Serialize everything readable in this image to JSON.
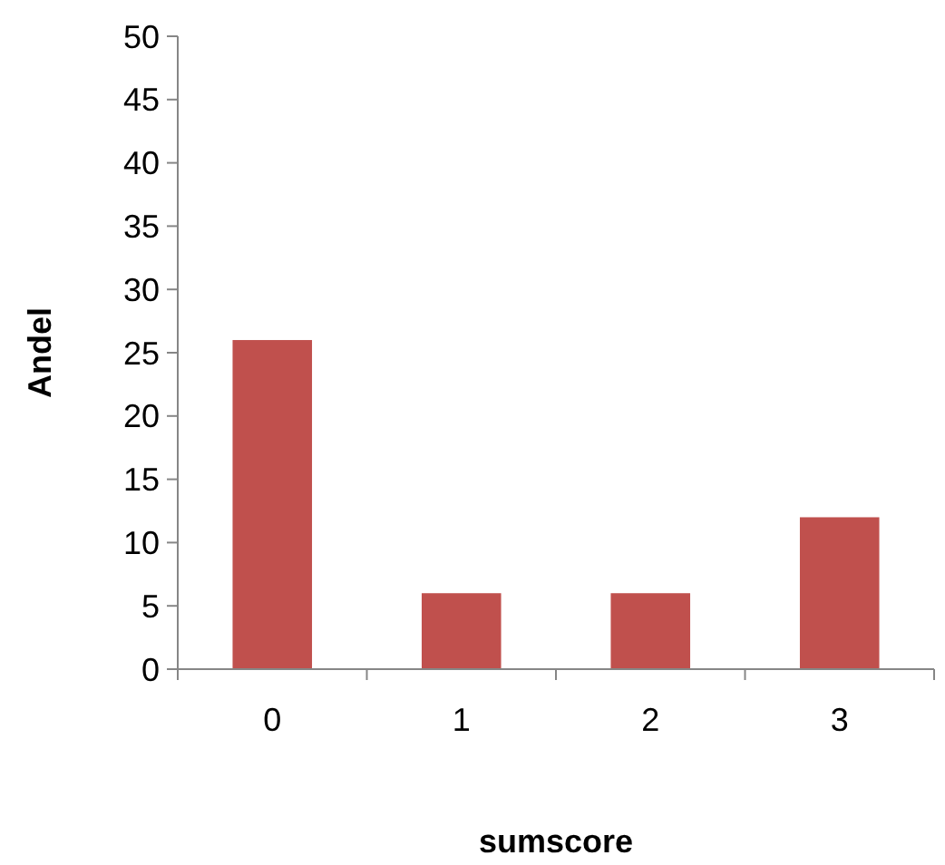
{
  "chart_data": {
    "type": "bar",
    "xlabel": "sumscore",
    "ylabel": "Andel",
    "categories": [
      "0",
      "1",
      "2",
      "3"
    ],
    "values": [
      26,
      6,
      6,
      12
    ],
    "color": "#c0504d",
    "ylim": [
      0,
      50
    ],
    "yticks": [
      0,
      5,
      10,
      15,
      20,
      25,
      30,
      35,
      40,
      45,
      50
    ],
    "grid": false
  }
}
